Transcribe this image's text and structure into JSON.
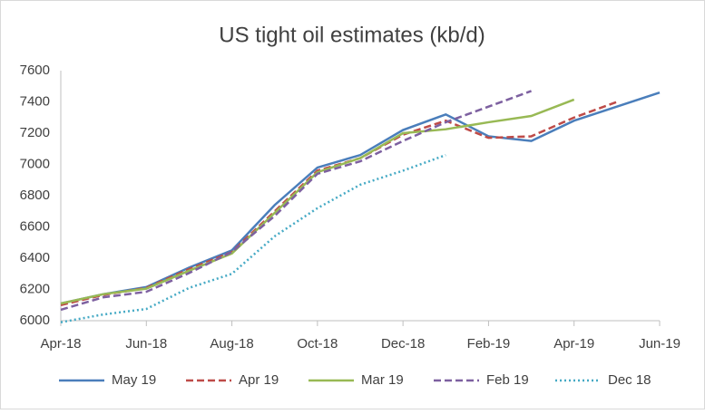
{
  "chart_data": {
    "type": "line",
    "title": "US tight oil estimates (kb/d)",
    "categories": [
      "Apr-18",
      null,
      "Jun-18",
      null,
      "Aug-18",
      null,
      "Oct-18",
      null,
      "Dec-18",
      null,
      "Feb-19",
      null,
      "Apr-19",
      null,
      "Jun-19"
    ],
    "series": [
      {
        "name": "May 19",
        "color": "#4a7ebb",
        "dash": "solid",
        "values": [
          6110,
          6170,
          6215,
          6340,
          6450,
          6740,
          6980,
          7060,
          7220,
          7320,
          7180,
          7150,
          7280,
          7370,
          7460
        ]
      },
      {
        "name": "Apr 19",
        "color": "#be4b48",
        "dash": "dashed",
        "values": [
          6100,
          6165,
          6210,
          6330,
          6440,
          6700,
          6960,
          7040,
          7190,
          7280,
          7170,
          7180,
          7300,
          7400,
          null
        ]
      },
      {
        "name": "Mar 19",
        "color": "#98b954",
        "dash": "solid",
        "values": [
          6110,
          6170,
          6205,
          6320,
          6430,
          6690,
          6950,
          7040,
          7200,
          7225,
          7270,
          7310,
          7415,
          null,
          null
        ]
      },
      {
        "name": "Feb 19",
        "color": "#7d60a0",
        "dash": "dashed",
        "values": [
          6070,
          6150,
          6185,
          6305,
          6440,
          6670,
          6940,
          7020,
          7150,
          7270,
          7370,
          7470,
          null,
          null,
          null
        ]
      },
      {
        "name": "Dec 18",
        "color": "#46aac5",
        "dash": "dotted",
        "values": [
          5990,
          6040,
          6075,
          6210,
          6300,
          6540,
          6720,
          6870,
          6960,
          7060,
          null,
          null,
          null,
          null,
          null
        ]
      }
    ],
    "ylim": [
      6000,
      7600
    ],
    "yticks": [
      6000,
      6200,
      6400,
      6600,
      6800,
      7000,
      7200,
      7400,
      7600
    ],
    "grid": false,
    "legend": "bottom"
  }
}
